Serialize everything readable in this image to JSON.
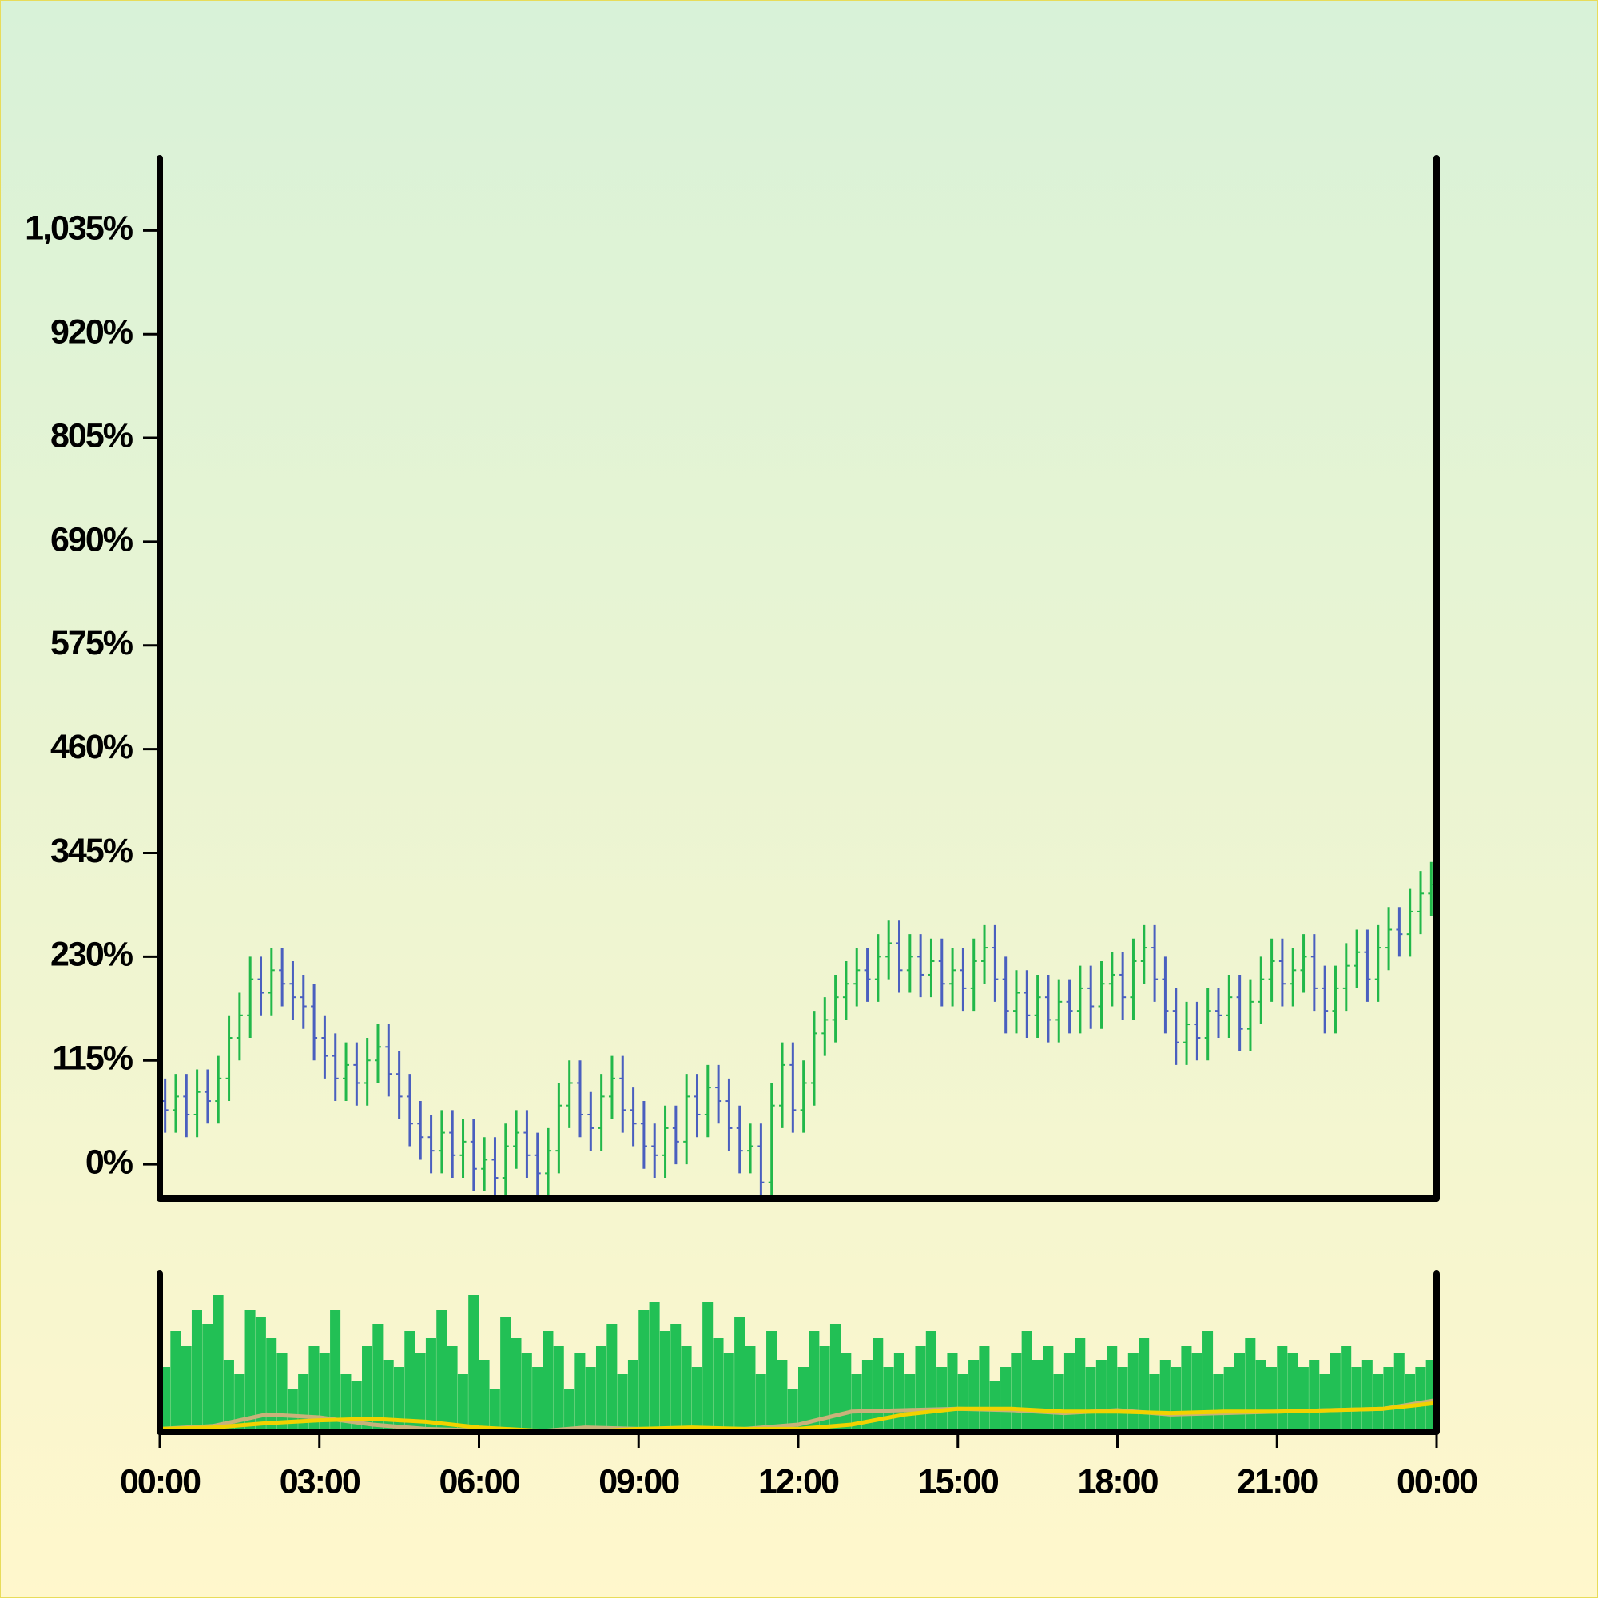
{
  "chart_data": {
    "type": "ohlc",
    "up_color": "#22b84a",
    "down_color": "#4a5fbf",
    "xlim": [
      0,
      24
    ],
    "xticks": [
      {
        "value": 0,
        "label": "00:00"
      },
      {
        "value": 3,
        "label": "03:00"
      },
      {
        "value": 6,
        "label": "06:00"
      },
      {
        "value": 9,
        "label": "09:00"
      },
      {
        "value": 12,
        "label": "12:00"
      },
      {
        "value": 15,
        "label": "15:00"
      },
      {
        "value": 18,
        "label": "18:00"
      },
      {
        "value": 21,
        "label": "21:00"
      },
      {
        "value": 24,
        "label": "00:00"
      }
    ],
    "ylim": [
      -38,
      1115
    ],
    "yticks": [
      {
        "value": 0,
        "label": "0%"
      },
      {
        "value": 115,
        "label": "115%"
      },
      {
        "value": 230,
        "label": "230%"
      },
      {
        "value": 345,
        "label": "345%"
      },
      {
        "value": 460,
        "label": "460%"
      },
      {
        "value": 575,
        "label": "575%"
      },
      {
        "value": 690,
        "label": "690%"
      },
      {
        "value": 805,
        "label": "805%"
      },
      {
        "value": 920,
        "label": "920%"
      },
      {
        "value": 1035,
        "label": "1,035%"
      }
    ],
    "x": [
      0.1,
      0.3,
      0.5,
      0.7,
      0.9,
      1.1,
      1.3,
      1.5,
      1.7,
      1.9,
      2.1,
      2.3,
      2.5,
      2.7,
      2.9,
      3.1,
      3.3,
      3.5,
      3.7,
      3.9,
      4.1,
      4.3,
      4.5,
      4.7,
      4.9,
      5.1,
      5.3,
      5.5,
      5.7,
      5.9,
      6.1,
      6.3,
      6.5,
      6.7,
      6.9,
      7.1,
      7.3,
      7.5,
      7.7,
      7.9,
      8.1,
      8.3,
      8.5,
      8.7,
      8.9,
      9.1,
      9.3,
      9.5,
      9.7,
      9.9,
      10.1,
      10.3,
      10.5,
      10.7,
      10.9,
      11.1,
      11.3,
      11.5,
      11.7,
      11.9,
      12.1,
      12.3,
      12.5,
      12.7,
      12.9,
      13.1,
      13.3,
      13.5,
      13.7,
      13.9,
      14.1,
      14.3,
      14.5,
      14.7,
      14.9,
      15.1,
      15.3,
      15.5,
      15.7,
      15.9,
      16.1,
      16.3,
      16.5,
      16.7,
      16.9,
      17.1,
      17.3,
      17.5,
      17.7,
      17.9,
      18.1,
      18.3,
      18.5,
      18.7,
      18.9,
      19.1,
      19.3,
      19.5,
      19.7,
      19.9,
      20.1,
      20.3,
      20.5,
      20.7,
      20.9,
      21.1,
      21.3,
      21.5,
      21.7,
      21.9,
      22.1,
      22.3,
      22.5,
      22.7,
      22.9,
      23.1,
      23.3,
      23.5,
      23.7,
      23.9
    ],
    "open": [
      70,
      60,
      75,
      55,
      80,
      70,
      95,
      140,
      165,
      205,
      190,
      215,
      200,
      185,
      175,
      140,
      120,
      95,
      110,
      90,
      115,
      130,
      100,
      75,
      45,
      30,
      15,
      35,
      10,
      25,
      -5,
      5,
      -15,
      20,
      35,
      10,
      -10,
      15,
      65,
      90,
      55,
      40,
      75,
      95,
      60,
      45,
      20,
      10,
      40,
      25,
      75,
      55,
      85,
      70,
      40,
      15,
      20,
      -20,
      65,
      110,
      60,
      90,
      145,
      160,
      185,
      200,
      215,
      205,
      230,
      245,
      215,
      230,
      210,
      225,
      200,
      215,
      195,
      225,
      240,
      205,
      170,
      190,
      165,
      185,
      160,
      180,
      170,
      195,
      175,
      200,
      210,
      185,
      225,
      240,
      205,
      170,
      135,
      155,
      140,
      170,
      165,
      185,
      150,
      180,
      205,
      225,
      200,
      215,
      230,
      195,
      170,
      195,
      220,
      235,
      205,
      240,
      260,
      255,
      280,
      300
    ],
    "high": [
      95,
      100,
      100,
      105,
      105,
      120,
      165,
      190,
      230,
      230,
      240,
      240,
      225,
      210,
      200,
      165,
      145,
      135,
      135,
      140,
      155,
      155,
      125,
      100,
      70,
      55,
      60,
      60,
      50,
      50,
      30,
      30,
      45,
      60,
      60,
      35,
      40,
      90,
      115,
      115,
      80,
      100,
      120,
      120,
      85,
      70,
      45,
      65,
      65,
      100,
      100,
      110,
      110,
      95,
      65,
      45,
      45,
      90,
      135,
      135,
      115,
      170,
      185,
      210,
      225,
      240,
      240,
      255,
      270,
      270,
      255,
      255,
      250,
      250,
      240,
      240,
      250,
      265,
      265,
      230,
      215,
      215,
      210,
      210,
      205,
      205,
      220,
      220,
      225,
      235,
      235,
      250,
      265,
      265,
      230,
      195,
      180,
      180,
      195,
      195,
      210,
      210,
      205,
      230,
      250,
      250,
      240,
      255,
      255,
      220,
      220,
      245,
      260,
      260,
      265,
      285,
      285,
      305,
      325,
      335
    ],
    "low": [
      35,
      35,
      30,
      30,
      45,
      45,
      70,
      115,
      140,
      165,
      165,
      175,
      160,
      150,
      115,
      95,
      70,
      70,
      65,
      65,
      90,
      75,
      50,
      20,
      5,
      -10,
      -10,
      -15,
      -15,
      -30,
      -30,
      -40,
      -40,
      -5,
      -15,
      -35,
      -35,
      -10,
      40,
      30,
      15,
      15,
      50,
      35,
      20,
      -5,
      -15,
      -15,
      0,
      0,
      30,
      30,
      45,
      15,
      -10,
      -10,
      -45,
      -45,
      40,
      35,
      35,
      65,
      120,
      135,
      160,
      175,
      180,
      180,
      205,
      190,
      190,
      185,
      185,
      175,
      175,
      170,
      170,
      200,
      180,
      145,
      145,
      140,
      140,
      135,
      135,
      145,
      145,
      150,
      150,
      175,
      160,
      160,
      200,
      180,
      145,
      110,
      110,
      115,
      115,
      140,
      140,
      125,
      125,
      155,
      180,
      175,
      175,
      190,
      170,
      145,
      145,
      170,
      195,
      180,
      180,
      215,
      230,
      230,
      255,
      275
    ],
    "close": [
      60,
      75,
      55,
      80,
      70,
      95,
      140,
      165,
      205,
      190,
      215,
      200,
      185,
      175,
      140,
      120,
      95,
      110,
      90,
      115,
      130,
      100,
      75,
      45,
      30,
      15,
      35,
      10,
      25,
      -5,
      5,
      -15,
      20,
      35,
      10,
      -10,
      15,
      65,
      90,
      55,
      40,
      75,
      95,
      60,
      45,
      20,
      10,
      40,
      25,
      75,
      55,
      85,
      70,
      40,
      15,
      20,
      -20,
      65,
      110,
      60,
      90,
      145,
      160,
      185,
      200,
      215,
      205,
      230,
      245,
      215,
      230,
      210,
      225,
      200,
      215,
      195,
      225,
      240,
      205,
      170,
      190,
      165,
      185,
      160,
      180,
      170,
      195,
      175,
      200,
      210,
      185,
      225,
      240,
      205,
      170,
      135,
      155,
      140,
      170,
      165,
      185,
      150,
      180,
      205,
      225,
      200,
      215,
      230,
      195,
      170,
      195,
      220,
      235,
      205,
      240,
      260,
      255,
      280,
      300,
      310
    ],
    "volume": {
      "color": "#22c055",
      "ylim": [
        0,
        110
      ],
      "values": [
        45,
        70,
        60,
        85,
        75,
        95,
        50,
        40,
        85,
        80,
        65,
        55,
        30,
        40,
        60,
        55,
        85,
        40,
        35,
        60,
        75,
        50,
        45,
        70,
        55,
        65,
        85,
        60,
        40,
        95,
        50,
        30,
        80,
        65,
        55,
        45,
        70,
        60,
        30,
        55,
        45,
        60,
        75,
        40,
        50,
        85,
        90,
        70,
        75,
        60,
        45,
        90,
        65,
        55,
        80,
        60,
        40,
        70,
        50,
        30,
        45,
        70,
        60,
        75,
        55,
        40,
        50,
        65,
        45,
        55,
        40,
        60,
        70,
        45,
        55,
        40,
        50,
        60,
        35,
        45,
        55,
        70,
        50,
        60,
        40,
        55,
        65,
        45,
        50,
        60,
        45,
        55,
        65,
        40,
        50,
        45,
        60,
        55,
        70,
        40,
        45,
        55,
        65,
        50,
        45,
        60,
        55,
        45,
        50,
        40,
        55,
        60,
        45,
        50,
        40,
        45,
        55,
        40,
        45,
        50
      ]
    },
    "moving_averages": {
      "x": [
        0,
        1,
        2,
        3,
        4,
        5,
        6,
        7,
        8,
        9,
        10,
        11,
        12,
        13,
        14,
        15,
        16,
        17,
        18,
        19,
        20,
        21,
        22,
        23,
        24
      ],
      "series": [
        {
          "color": "#c9b27a",
          "values": [
            2,
            4,
            12,
            10,
            5,
            2,
            1,
            0,
            3,
            2,
            2,
            2,
            5,
            14,
            15,
            16,
            15,
            13,
            15,
            12,
            13,
            14,
            15,
            16,
            22
          ]
        },
        {
          "color": "#f2d200",
          "values": [
            2,
            3,
            6,
            8,
            9,
            7,
            3,
            1,
            0,
            2,
            3,
            2,
            2,
            5,
            12,
            16,
            16,
            14,
            14,
            13,
            14,
            14,
            15,
            16,
            20
          ]
        }
      ]
    }
  }
}
